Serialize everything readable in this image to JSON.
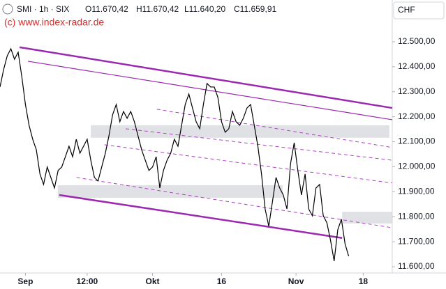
{
  "chart_data": {
    "type": "line",
    "title": "SMI · 1h · SIX",
    "ohlc": [
      "O11.670,42",
      "H11.670,42",
      "L11.640,20",
      "C11.659,91"
    ],
    "copyright": "(c) www.index-radar.de",
    "currency": "CHF",
    "series": [
      {
        "color": "#000000",
        "values": [
          12319,
          12389,
          12444,
          12472,
          12430,
          12458,
          12361,
          12249,
          12166,
          12110,
          12068,
          11971,
          11929,
          11999,
          11957,
          11915,
          11985,
          11999,
          12040,
          12082,
          12040,
          12110,
          12054,
          12082,
          12110,
          12026,
          11957,
          11943,
          11999,
          12054,
          12124,
          12208,
          12249,
          12180,
          12221,
          12194,
          12221,
          12180,
          12124,
          12068,
          12026,
          11985,
          11999,
          12040,
          11915,
          11985,
          12026,
          12054,
          12110,
          12082,
          12166,
          12249,
          12291,
          12235,
          12180,
          12152,
          12249,
          12333,
          12319,
          12319,
          12277,
          12180,
          12138,
          12152,
          12221,
          12180,
          12166,
          12194,
          12235,
          12249,
          12166,
          12082,
          11971,
          11831,
          11762,
          11859,
          11957,
          11915,
          11887,
          11831,
          12013,
          12096,
          11985,
          11887,
          11971,
          11831,
          11804,
          11915,
          11929,
          11804,
          11776,
          11706,
          11623,
          11748,
          11790,
          11692,
          11642
        ]
      }
    ],
    "xlim": [
      0,
      108
    ],
    "xticks": [
      {
        "value": 7,
        "label": "Sep"
      },
      {
        "value": 24,
        "label": "12:00"
      },
      {
        "value": 42,
        "label": "Okt"
      },
      {
        "value": 61,
        "label": "16"
      },
      {
        "value": 81.5,
        "label": "Nov"
      },
      {
        "value": 100,
        "label": "18"
      }
    ],
    "ylim": [
      11575,
      12667
    ],
    "yticks": [
      {
        "value": 12500,
        "label": "12.500,00"
      },
      {
        "value": 12400,
        "label": "12.400,00"
      },
      {
        "value": 12300,
        "label": "12.300,00"
      },
      {
        "value": 12200,
        "label": "12.200,00"
      },
      {
        "value": 12100,
        "label": "12.100,00"
      },
      {
        "value": 12000,
        "label": "12.000,00"
      },
      {
        "value": 11900,
        "label": "11.900,00"
      },
      {
        "value": 11800,
        "label": "11.800,00"
      },
      {
        "value": 11700,
        "label": "11.700,00"
      },
      {
        "value": 11600,
        "label": "11.600,00"
      }
    ],
    "lines": [
      {
        "x": [
          5.4,
          108
        ],
        "y": [
          12478,
          12235
        ],
        "color": "#9c27b0",
        "width": 2.5
      },
      {
        "x": [
          7.7,
          108
        ],
        "y": [
          12422,
          12188
        ],
        "color": "#9c27b0",
        "width": 1.2
      },
      {
        "x": [
          43.2,
          108
        ],
        "y": [
          12230,
          12077
        ],
        "color": "#b040c8",
        "width": 1,
        "dash": true
      },
      {
        "x": [
          34.6,
          108
        ],
        "y": [
          12152,
          12026
        ],
        "color": "#b040c8",
        "width": 1,
        "dash": true
      },
      {
        "x": [
          28.8,
          108
        ],
        "y": [
          12088,
          11935
        ],
        "color": "#b040c8",
        "width": 1,
        "dash": true
      },
      {
        "x": [
          21.1,
          108
        ],
        "y": [
          11957,
          11756
        ],
        "color": "#b040c8",
        "width": 1,
        "dash": true
      },
      {
        "x": [
          16.3,
          94.2
        ],
        "y": [
          11887,
          11715
        ],
        "color": "#9c27b0",
        "width": 2.5
      }
    ],
    "zones": [
      {
        "x": [
          25,
          107.2
        ],
        "y": [
          12166,
          12116
        ],
        "color": "#e0e1e5"
      },
      {
        "x": [
          15.9,
          77.8
        ],
        "y": [
          11926,
          11876
        ],
        "color": "#e0e1e5"
      },
      {
        "x": [
          94.2,
          108
        ],
        "y": [
          11820,
          11773
        ],
        "color": "#e0e1e5"
      }
    ]
  }
}
